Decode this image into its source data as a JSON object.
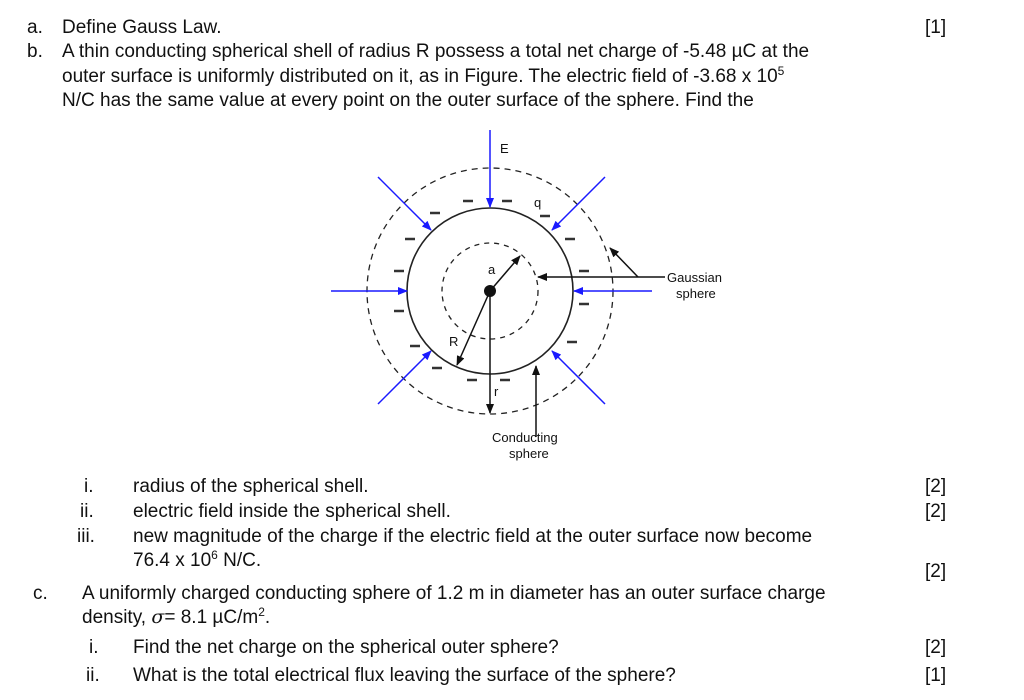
{
  "a": {
    "label": "a.",
    "text": "Define Gauss Law.",
    "marks": "[1]"
  },
  "b": {
    "label": "b.",
    "line1": "A thin conducting spherical shell of radius R possess a total net charge of -5.48 µC at the",
    "line2_pre": "outer surface is uniformly distributed on it, as in Figure. The electric field of -3.68 x 10",
    "line2_sup": "5",
    "line3": "N/C has the same value at every point on the outer surface of the sphere. Find the",
    "figure": {
      "E": "E",
      "q": "q",
      "a": "a",
      "R": "R",
      "r": "r",
      "gaussian_1": "Gaussian",
      "gaussian_2": "sphere",
      "conducting_1": "Conducting",
      "conducting_2": "sphere",
      "field_color": "#1a1aff"
    },
    "items": [
      {
        "num": "i.",
        "text": "radius of the spherical shell.",
        "marks": "[2]"
      },
      {
        "num": "ii.",
        "text": "electric field inside the spherical shell.",
        "marks": "[2]"
      },
      {
        "num": "iii.",
        "text": "new magnitude of the charge if the electric field at the outer surface now become",
        "text2_pre": "76.4 x 10",
        "text2_sup": "6",
        "text2_post": " N/C.",
        "marks": "[2]"
      }
    ]
  },
  "c": {
    "label": "c.",
    "line1": "A uniformly charged conducting sphere of 1.2 m in diameter has an outer surface charge",
    "line2_pre": "density, ",
    "sigma": "σ",
    "line2_mid": "= 8.1 µC/m",
    "line2_sup": "2",
    "line2_post": ".",
    "items": [
      {
        "num": "i.",
        "text": "Find the net charge on the spherical outer sphere?",
        "marks": "[2]"
      },
      {
        "num": "ii.",
        "text": "What is the total electrical flux leaving the surface of the sphere?",
        "marks": "[1]"
      }
    ]
  }
}
